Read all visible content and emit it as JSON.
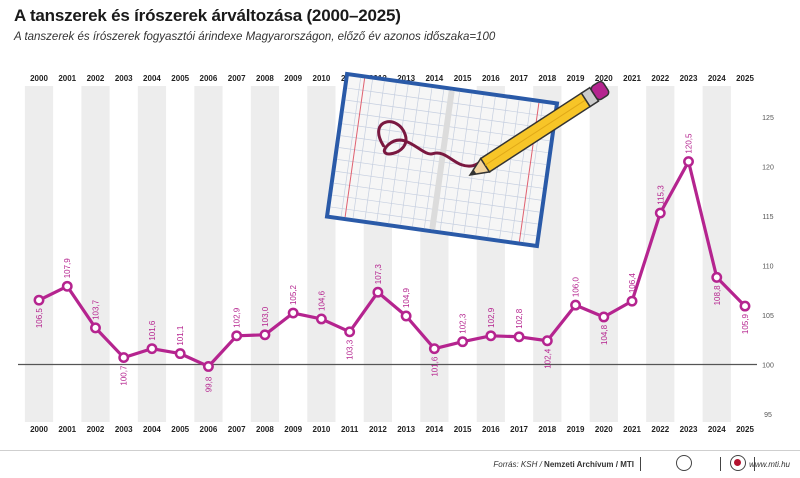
{
  "header": {
    "title": "A tanszerek és írószerek árváltozása (2000–2025)",
    "subtitle": "A tanszerek és írószerek fogyasztói árindexe Magyarországon, előző év azonos időszaka=100"
  },
  "footer": {
    "source_prefix": "Forrás: KSH / ",
    "source_main": "Nemzeti Archívum / MTI",
    "website": "www.mti.hu"
  },
  "colors": {
    "line": "#b5248f",
    "stripe": "#ededed",
    "baseline": "#555555"
  },
  "chart_data": {
    "type": "line",
    "categories": [
      "2000",
      "2001",
      "2002",
      "2003",
      "2004",
      "2005",
      "2006",
      "2007",
      "2008",
      "2009",
      "2010",
      "2011",
      "2012",
      "2013",
      "2014",
      "2015",
      "2016",
      "2017",
      "2018",
      "2019",
      "2020",
      "2021",
      "2022",
      "2023",
      "2024",
      "2025"
    ],
    "series": [
      {
        "values": [
          106.5,
          107.9,
          103.7,
          100.7,
          101.6,
          101.1,
          99.8,
          102.9,
          103.0,
          105.2,
          104.6,
          103.3,
          107.3,
          104.9,
          101.6,
          102.3,
          102.9,
          102.8,
          102.4,
          106.0,
          104.8,
          106.4,
          115.3,
          120.5,
          108.8,
          105.9
        ],
        "labels": [
          "106,5",
          "107,9",
          "103,7",
          "100,7",
          "101,6",
          "101,1",
          "99,8",
          "102,9",
          "103,0",
          "105,2",
          "104,6",
          "103,3",
          "107,3",
          "104,9",
          "101,6",
          "102,3",
          "102,9",
          "102,8",
          "102,4",
          "106,0",
          "104,8",
          "106,4",
          "115,3",
          "120,5",
          "108,8",
          "105,9"
        ]
      }
    ],
    "ylim": [
      95,
      125
    ],
    "yticks": [
      95,
      100,
      105,
      110,
      115,
      120,
      125
    ],
    "ytick_labels": [
      "95",
      "100",
      "105",
      "110",
      "115",
      "120",
      "125"
    ],
    "reference_line": 100,
    "grid": false,
    "legend": "none"
  }
}
